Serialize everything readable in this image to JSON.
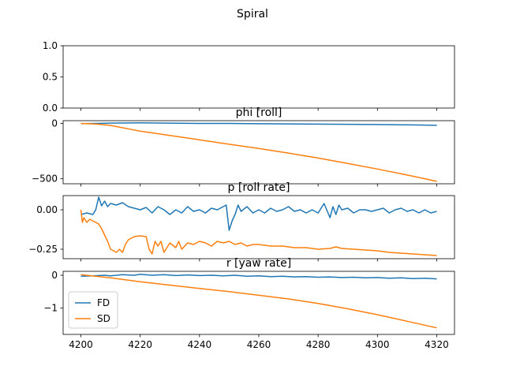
{
  "suptitle": "Spiral",
  "colors": {
    "FD": "#1f77b4",
    "SD": "#ff7f0e"
  },
  "chart_data": [
    {
      "type": "line",
      "title": "",
      "xlim": [
        4194,
        4326
      ],
      "ylim": [
        0,
        1
      ],
      "yticks": [
        0.0,
        0.5,
        1.0
      ],
      "ytick_labels": [
        "0.0",
        "0.5",
        "1.0"
      ],
      "xticks": [
        4200,
        4220,
        4240,
        4260,
        4280,
        4300,
        4320
      ],
      "x_ticklabels_visible": false,
      "series": []
    },
    {
      "type": "line",
      "title": "phi [roll]",
      "xlim": [
        4194,
        4326
      ],
      "ylim": [
        -545,
        25
      ],
      "yticks": [
        0,
        -500
      ],
      "ytick_labels": [
        "0",
        "−500"
      ],
      "xticks": [
        4200,
        4220,
        4240,
        4260,
        4280,
        4300,
        4320
      ],
      "x_ticklabels_visible": false,
      "series": [
        {
          "name": "FD",
          "color": "#1f77b4",
          "x": [
            4200,
            4210,
            4220,
            4230,
            4240,
            4250,
            4260,
            4270,
            4280,
            4290,
            4300,
            4310,
            4320
          ],
          "y": [
            -2,
            3,
            5,
            3,
            0,
            0,
            -3,
            -4,
            -6,
            -8,
            -10,
            -13,
            -17
          ]
        },
        {
          "name": "SD",
          "color": "#ff7f0e",
          "x": [
            4200,
            4205,
            4210,
            4220,
            4230,
            4240,
            4250,
            4260,
            4270,
            4280,
            4290,
            4300,
            4310,
            4320
          ],
          "y": [
            0,
            -5,
            -18,
            -70,
            -108,
            -148,
            -188,
            -226,
            -268,
            -313,
            -361,
            -412,
            -466,
            -523
          ]
        }
      ]
    },
    {
      "type": "line",
      "title": "p [roll rate]",
      "xlim": [
        4194,
        4326
      ],
      "ylim": [
        -0.31,
        0.09
      ],
      "yticks": [
        0.0,
        -0.25
      ],
      "ytick_labels": [
        "0.00",
        "−0.25"
      ],
      "xticks": [
        4200,
        4220,
        4240,
        4260,
        4280,
        4300,
        4320
      ],
      "x_ticklabels_visible": false,
      "series": [
        {
          "name": "FD",
          "color": "#1f77b4",
          "x": [
            4200,
            4202,
            4204,
            4205,
            4206,
            4207,
            4208,
            4209,
            4210,
            4212,
            4214,
            4216,
            4218,
            4220,
            4222,
            4224,
            4226,
            4228,
            4230,
            4232,
            4234,
            4236,
            4238,
            4240,
            4242,
            4244,
            4246,
            4248,
            4249,
            4250,
            4251,
            4252,
            4253,
            4254,
            4256,
            4258,
            4260,
            4262,
            4264,
            4266,
            4268,
            4270,
            4272,
            4274,
            4276,
            4278,
            4280,
            4282,
            4284,
            4285,
            4286,
            4287,
            4288,
            4290,
            4292,
            4294,
            4296,
            4298,
            4300,
            4302,
            4304,
            4306,
            4308,
            4310,
            4312,
            4314,
            4316,
            4318,
            4320
          ],
          "y": [
            -0.03,
            -0.02,
            -0.03,
            0.0,
            0.08,
            0.025,
            0.055,
            0.02,
            0.04,
            0.03,
            0.045,
            0.02,
            0.01,
            0.0,
            0.015,
            -0.02,
            0.02,
            0.0,
            -0.03,
            0.0,
            -0.02,
            0.02,
            -0.01,
            0.0,
            -0.02,
            0.01,
            0.0,
            0.02,
            0.03,
            -0.13,
            -0.07,
            -0.03,
            0.03,
            -0.01,
            0.02,
            -0.02,
            0.0,
            -0.02,
            0.01,
            -0.01,
            0.0,
            0.02,
            -0.01,
            0.0,
            -0.02,
            0.0,
            -0.02,
            0.04,
            -0.05,
            0.02,
            -0.03,
            0.03,
            0.0,
            0.01,
            -0.02,
            0.0,
            0.0,
            -0.01,
            0.0,
            0.01,
            -0.02,
            0.0,
            0.01,
            -0.01,
            0.0,
            -0.02,
            0.0,
            -0.02,
            -0.01
          ]
        },
        {
          "name": "SD",
          "color": "#ff7f0e",
          "x": [
            4200,
            4200.5,
            4201,
            4202,
            4203,
            4204,
            4205,
            4206,
            4207,
            4208,
            4209,
            4210,
            4211,
            4212,
            4213,
            4214,
            4215,
            4216,
            4218,
            4220,
            4222,
            4223,
            4224,
            4225,
            4226,
            4227,
            4228,
            4230,
            4232,
            4233,
            4234,
            4236,
            4238,
            4240,
            4242,
            4244,
            4246,
            4248,
            4250,
            4252,
            4254,
            4256,
            4258,
            4260,
            4264,
            4268,
            4272,
            4276,
            4280,
            4284,
            4286,
            4288,
            4292,
            4296,
            4300,
            4304,
            4308,
            4312,
            4316,
            4320
          ],
          "y": [
            0.0,
            -0.08,
            -0.05,
            -0.08,
            -0.06,
            -0.07,
            -0.08,
            -0.09,
            -0.12,
            -0.16,
            -0.2,
            -0.25,
            -0.26,
            -0.27,
            -0.25,
            -0.27,
            -0.22,
            -0.19,
            -0.17,
            -0.165,
            -0.17,
            -0.25,
            -0.28,
            -0.2,
            -0.23,
            -0.2,
            -0.27,
            -0.21,
            -0.24,
            -0.2,
            -0.25,
            -0.21,
            -0.22,
            -0.2,
            -0.21,
            -0.23,
            -0.2,
            -0.21,
            -0.2,
            -0.22,
            -0.21,
            -0.23,
            -0.22,
            -0.22,
            -0.23,
            -0.23,
            -0.24,
            -0.24,
            -0.25,
            -0.245,
            -0.235,
            -0.245,
            -0.25,
            -0.255,
            -0.26,
            -0.27,
            -0.275,
            -0.28,
            -0.285,
            -0.29
          ]
        }
      ]
    },
    {
      "type": "line",
      "title": "r [yaw rate]",
      "xlim": [
        4194,
        4326
      ],
      "ylim": [
        -1.8,
        0.12
      ],
      "yticks": [
        0,
        -1
      ],
      "ytick_labels": [
        "0",
        "−1"
      ],
      "xticks": [
        4200,
        4220,
        4240,
        4260,
        4280,
        4300,
        4320
      ],
      "xtick_labels": [
        "4200",
        "4220",
        "4240",
        "4260",
        "4280",
        "4300",
        "4320"
      ],
      "x_ticklabels_visible": true,
      "legend": {
        "loc": "lower left",
        "entries": [
          "FD",
          "SD"
        ]
      },
      "series": [
        {
          "name": "FD",
          "color": "#1f77b4",
          "x": [
            4200,
            4204,
            4208,
            4210,
            4214,
            4218,
            4220,
            4224,
            4228,
            4232,
            4236,
            4240,
            4244,
            4248,
            4252,
            4256,
            4260,
            4264,
            4268,
            4272,
            4276,
            4280,
            4284,
            4288,
            4292,
            4296,
            4300,
            4304,
            4308,
            4312,
            4316,
            4320
          ],
          "y": [
            -0.03,
            -0.02,
            0.0,
            -0.02,
            0.02,
            0.0,
            0.03,
            0.0,
            0.02,
            -0.01,
            0.01,
            -0.01,
            0.0,
            -0.02,
            0.0,
            -0.03,
            -0.02,
            -0.04,
            -0.03,
            -0.05,
            -0.04,
            -0.06,
            -0.05,
            -0.07,
            -0.06,
            -0.08,
            -0.07,
            -0.09,
            -0.08,
            -0.1,
            -0.09,
            -0.11
          ]
        },
        {
          "name": "SD",
          "color": "#ff7f0e",
          "x": [
            4200,
            4210,
            4220,
            4230,
            4240,
            4250,
            4260,
            4270,
            4280,
            4290,
            4300,
            4310,
            4320
          ],
          "y": [
            0.02,
            -0.08,
            -0.2,
            -0.3,
            -0.4,
            -0.5,
            -0.61,
            -0.72,
            -0.86,
            -1.02,
            -1.2,
            -1.4,
            -1.6
          ]
        }
      ]
    }
  ]
}
